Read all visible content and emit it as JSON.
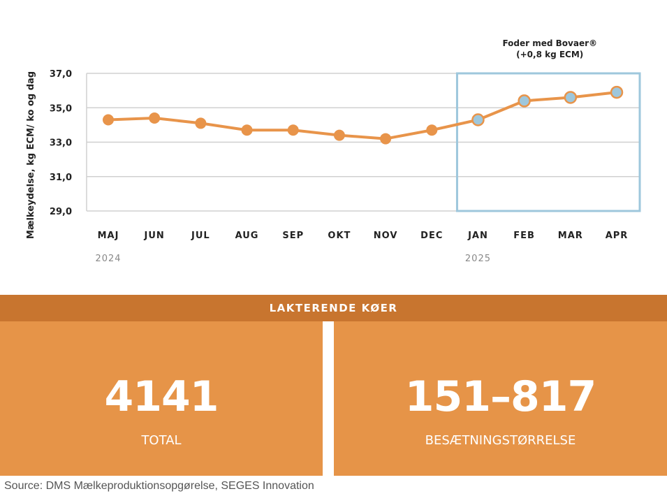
{
  "chart_data": {
    "type": "line",
    "categories": [
      "MAJ",
      "JUN",
      "JUL",
      "AUG",
      "SEP",
      "OKT",
      "NOV",
      "DEC",
      "JAN",
      "FEB",
      "MAR",
      "APR"
    ],
    "years": [
      {
        "label": "2024",
        "category_index": 0
      },
      {
        "label": "2025",
        "category_index": 8
      }
    ],
    "values": [
      34.3,
      34.4,
      34.1,
      33.7,
      33.7,
      33.4,
      33.2,
      33.7,
      34.3,
      35.4,
      35.6,
      35.9
    ],
    "ylabel": "Mælkeydelse, kg ECM/ ko og dag",
    "yticks": [
      "29,0",
      "31,0",
      "33,0",
      "35,0",
      "37,0"
    ],
    "ylim": [
      29,
      37
    ],
    "grid": true,
    "highlight": {
      "from_index": 8,
      "to_index": 11,
      "label_line1": "Foder med Bovaer®",
      "label_line2": "(+0,8 kg ECM)"
    },
    "colors": {
      "line": "#e8944a",
      "point": "#e8944a",
      "highlight_point": "#9ec7dc",
      "highlight_box": "#9ec7dc",
      "grid": "#d0d0d0"
    }
  },
  "banner": "LAKTERENDE KØER",
  "stats": [
    {
      "value": "4141",
      "label": "TOTAL"
    },
    {
      "value": "151–817",
      "label": "BESÆTNINGSTØRRELSE"
    }
  ],
  "source": "Source: DMS Mælkeproduktionsopgørelse, SEGES Innovation"
}
